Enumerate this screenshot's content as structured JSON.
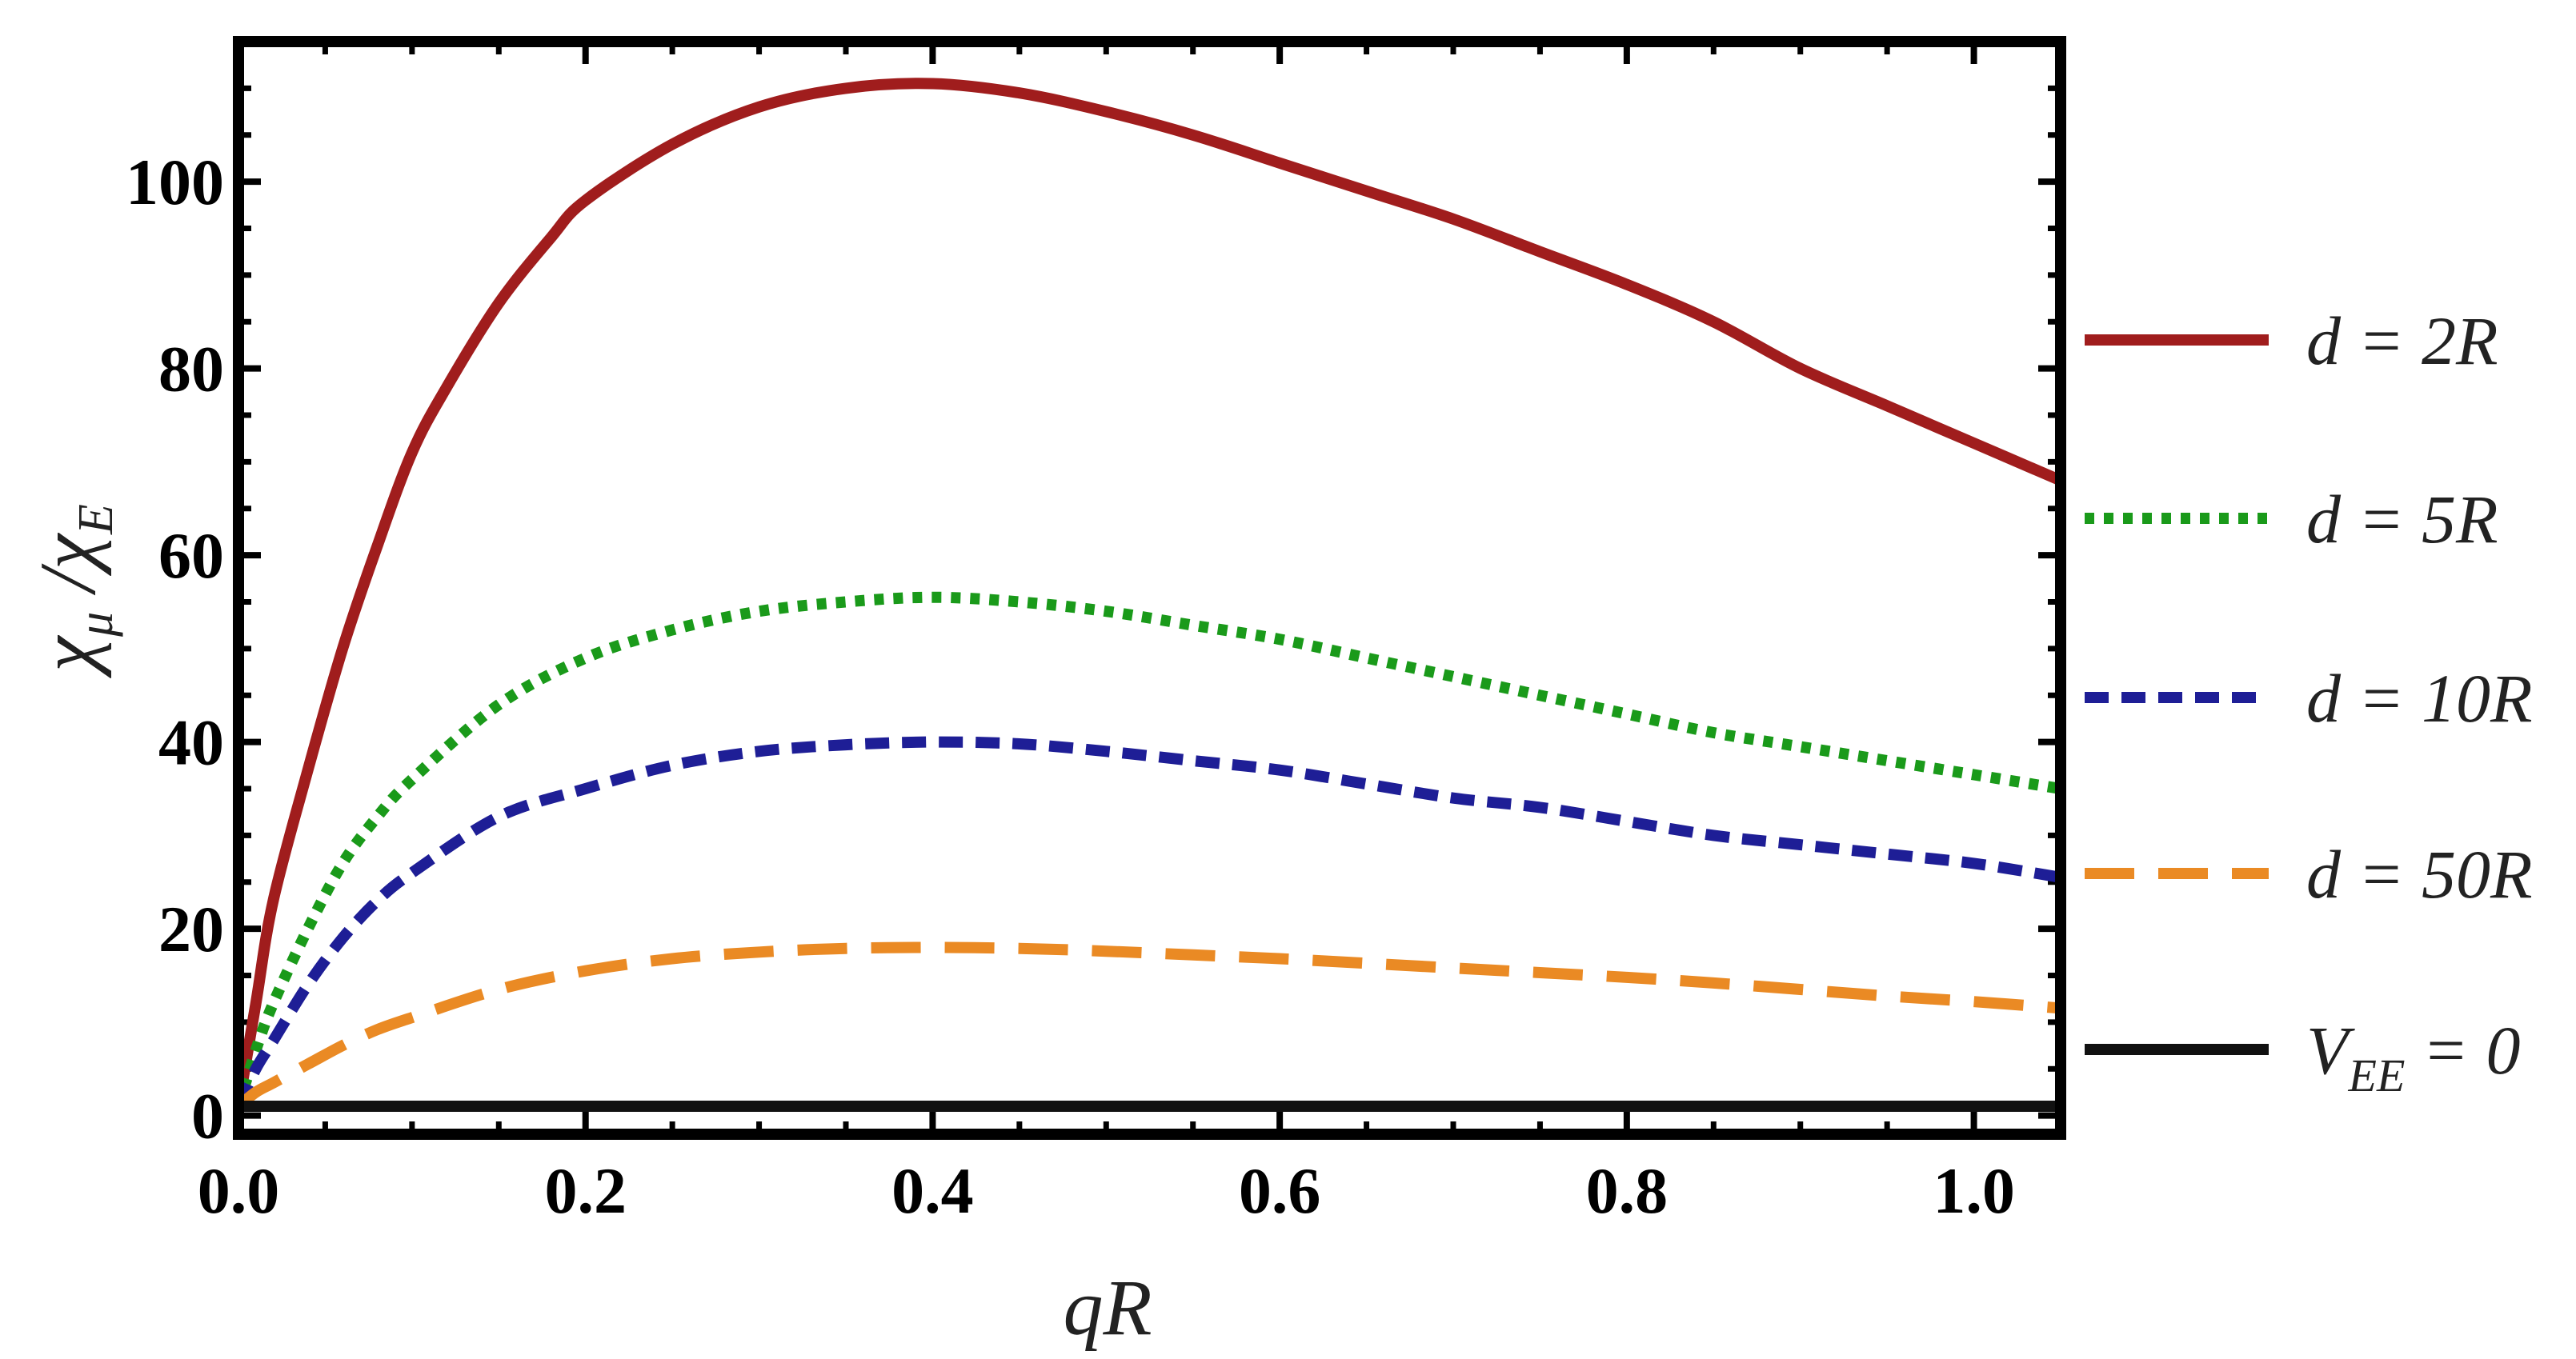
{
  "chart_data": {
    "type": "line",
    "title": "",
    "xlabel": "qR",
    "ylabel_main": "χ",
    "ylabel_sub1": "μ",
    "ylabel_sep": " /",
    "ylabel_sub2": "E",
    "xlim": [
      0,
      1.05
    ],
    "ylim": [
      -2,
      115
    ],
    "xticks": [
      0.0,
      0.2,
      0.4,
      0.6,
      0.8,
      1.0
    ],
    "xtick_labels": [
      "0.0",
      "0.2",
      "0.4",
      "0.6",
      "0.8",
      "1.0"
    ],
    "yticks": [
      0,
      20,
      40,
      60,
      80,
      100
    ],
    "ytick_labels": [
      "0",
      "20",
      "40",
      "60",
      "80",
      "100"
    ],
    "grid": false,
    "legend_position": "right-outside",
    "series": [
      {
        "name": "d = 2R",
        "label_text": "d = 2R",
        "color": "#a01d1d",
        "style": "solid",
        "x": [
          0.0,
          0.01,
          0.02,
          0.04,
          0.06,
          0.08,
          0.1,
          0.12,
          0.15,
          0.18,
          0.2,
          0.25,
          0.3,
          0.35,
          0.4,
          0.45,
          0.5,
          0.55,
          0.6,
          0.65,
          0.7,
          0.75,
          0.8,
          0.85,
          0.9,
          0.95,
          1.0,
          1.05
        ],
        "y": [
          1,
          12,
          23,
          37,
          50,
          61,
          71,
          78,
          87,
          94,
          98,
          104,
          108,
          110,
          110.5,
          109.5,
          107.5,
          105,
          102,
          99,
          96,
          92.5,
          89,
          85,
          80,
          76,
          72,
          68
        ]
      },
      {
        "name": "d = 5R",
        "label_text": "d = 5R",
        "color": "#1a9a1a",
        "style": "dotted",
        "x": [
          0.0,
          0.01,
          0.02,
          0.04,
          0.06,
          0.08,
          0.1,
          0.15,
          0.2,
          0.25,
          0.3,
          0.35,
          0.4,
          0.45,
          0.5,
          0.55,
          0.6,
          0.65,
          0.7,
          0.75,
          0.8,
          0.85,
          0.9,
          0.95,
          1.0,
          1.05
        ],
        "y": [
          1,
          7,
          12,
          20,
          27,
          32,
          36,
          44,
          49,
          52,
          54,
          55,
          55.5,
          55,
          54,
          52.5,
          51,
          49,
          47,
          45,
          43,
          41,
          39.5,
          38,
          36.5,
          35
        ]
      },
      {
        "name": "d = 10R",
        "label_text": "d = 10R",
        "color": "#1e1e96",
        "style": "dashed",
        "x": [
          0.0,
          0.01,
          0.02,
          0.04,
          0.06,
          0.08,
          0.1,
          0.15,
          0.2,
          0.25,
          0.3,
          0.35,
          0.4,
          0.45,
          0.5,
          0.55,
          0.6,
          0.65,
          0.7,
          0.75,
          0.8,
          0.85,
          0.9,
          0.95,
          1.0,
          1.05
        ],
        "y": [
          1,
          5,
          8,
          14,
          19,
          23,
          26,
          32,
          35,
          37.5,
          39,
          39.7,
          40,
          39.8,
          39,
          38,
          37,
          35.5,
          34,
          33,
          31.5,
          30,
          29,
          28,
          27,
          25.5
        ]
      },
      {
        "name": "d = 50R",
        "label_text": "d = 50R",
        "color": "#ea8a24",
        "style": "longdash",
        "x": [
          0.0,
          0.01,
          0.02,
          0.04,
          0.06,
          0.08,
          0.1,
          0.15,
          0.2,
          0.25,
          0.3,
          0.35,
          0.4,
          0.45,
          0.5,
          0.55,
          0.6,
          0.65,
          0.7,
          0.75,
          0.8,
          0.85,
          0.9,
          0.95,
          1.0,
          1.05
        ],
        "y": [
          1,
          2.5,
          3.5,
          5.5,
          7.5,
          9.2,
          10.5,
          13.5,
          15.5,
          16.8,
          17.5,
          17.9,
          18,
          17.9,
          17.6,
          17.2,
          16.8,
          16.3,
          15.8,
          15.3,
          14.8,
          14.2,
          13.5,
          12.8,
          12.2,
          11.5
        ]
      },
      {
        "name": "V_EE = 0",
        "label_main": "V",
        "label_sub": "EE",
        "label_rest": " = 0",
        "color": "#111111",
        "style": "solid",
        "x": [
          0.0,
          1.05
        ],
        "y": [
          1,
          1
        ]
      }
    ]
  }
}
